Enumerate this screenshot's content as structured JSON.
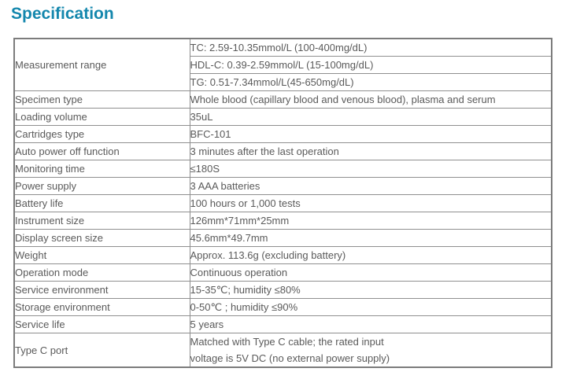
{
  "page": {
    "title": "Specification"
  },
  "colors": {
    "title": "#1487ad",
    "table_border": "#8f8f8f",
    "table_outer_border": "#7c7c7c",
    "text": "#5a5a5a",
    "background": "#ffffff"
  },
  "table": {
    "rows": [
      {
        "label": "Measurement range",
        "cells": [
          [
            "TC: 2.59-10.35mmol/L (100-400mg/dL)"
          ],
          [
            "HDL-C: 0.39-2.59mmol/L (15-100mg/dL)"
          ],
          [
            "TG: 0.51-7.34mmol/L(45-650mg/dL)"
          ]
        ]
      },
      {
        "label": "Specimen type",
        "cells": [
          [
            "Whole blood (capillary blood and venous blood), plasma and serum"
          ]
        ]
      },
      {
        "label": "Loading volume",
        "cells": [
          [
            "35uL"
          ]
        ]
      },
      {
        "label": "Cartridges type",
        "cells": [
          [
            "BFC-101"
          ]
        ]
      },
      {
        "label": "Auto power off function",
        "cells": [
          [
            "3 minutes after the last operation"
          ]
        ]
      },
      {
        "label": "Monitoring time",
        "cells": [
          [
            "≤180S"
          ]
        ]
      },
      {
        "label": "Power supply",
        "cells": [
          [
            "3 AAA batteries"
          ]
        ]
      },
      {
        "label": "Battery life",
        "cells": [
          [
            "100 hours or 1,000 tests"
          ]
        ]
      },
      {
        "label": "Instrument size",
        "cells": [
          [
            "126mm*71mm*25mm"
          ]
        ]
      },
      {
        "label": "Display screen size",
        "cells": [
          [
            "45.6mm*49.7mm"
          ]
        ]
      },
      {
        "label": "Weight",
        "cells": [
          [
            "Approx. 113.6g (excluding battery)"
          ]
        ]
      },
      {
        "label": "Operation mode",
        "cells": [
          [
            "Continuous operation"
          ]
        ]
      },
      {
        "label": "Service environment",
        "cells": [
          [
            "15-35℃; humidity ≤80%"
          ]
        ]
      },
      {
        "label": "Storage environment",
        "cells": [
          [
            "0-50℃ ; humidity ≤90%"
          ]
        ]
      },
      {
        "label": "Service life",
        "cells": [
          [
            "5 years"
          ]
        ]
      },
      {
        "label": "Type C port",
        "cells": [
          [
            "Matched with Type C cable; the rated input",
            "voltage is 5V DC (no external power supply)"
          ]
        ]
      }
    ]
  }
}
